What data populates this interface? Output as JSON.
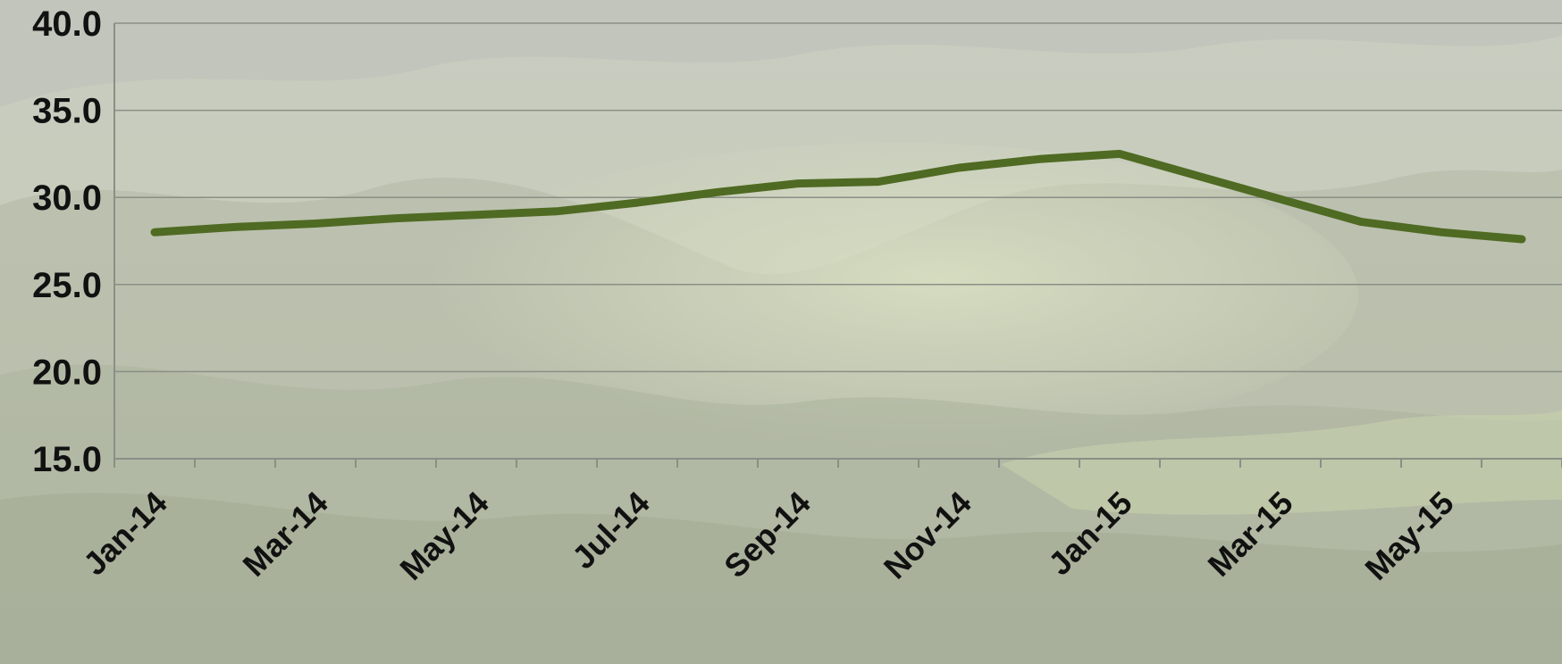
{
  "chart_data": {
    "type": "line",
    "title": "",
    "xlabel": "",
    "ylabel": "",
    "ylim": [
      15,
      40
    ],
    "yticks": [
      "40.0",
      "35.0",
      "30.0",
      "25.0",
      "20.0",
      "15.0"
    ],
    "ytick_values": [
      40,
      35,
      30,
      25,
      20,
      15
    ],
    "x": [
      "Jan-14",
      "Feb-14",
      "Mar-14",
      "Apr-14",
      "May-14",
      "Jun-14",
      "Jul-14",
      "Aug-14",
      "Sep-14",
      "Oct-14",
      "Nov-14",
      "Dec-14",
      "Jan-15",
      "Feb-15",
      "Mar-15",
      "Apr-15",
      "May-15",
      "Jun-15"
    ],
    "xtick_labels": [
      "Jan-14",
      "Mar-14",
      "May-14",
      "Jul-14",
      "Sep-14",
      "Nov-14",
      "Jan-15",
      "Mar-15",
      "May-15"
    ],
    "series": [
      {
        "values": [
          28.0,
          28.3,
          28.5,
          28.8,
          29.0,
          29.2,
          29.7,
          30.3,
          30.8,
          30.9,
          31.7,
          32.2,
          32.5,
          31.2,
          29.9,
          28.6,
          28.0,
          27.6
        ],
        "color": "#4f6a22"
      }
    ],
    "grid": true,
    "legend": "none",
    "background": "faded landscape photograph of badlands valley"
  }
}
